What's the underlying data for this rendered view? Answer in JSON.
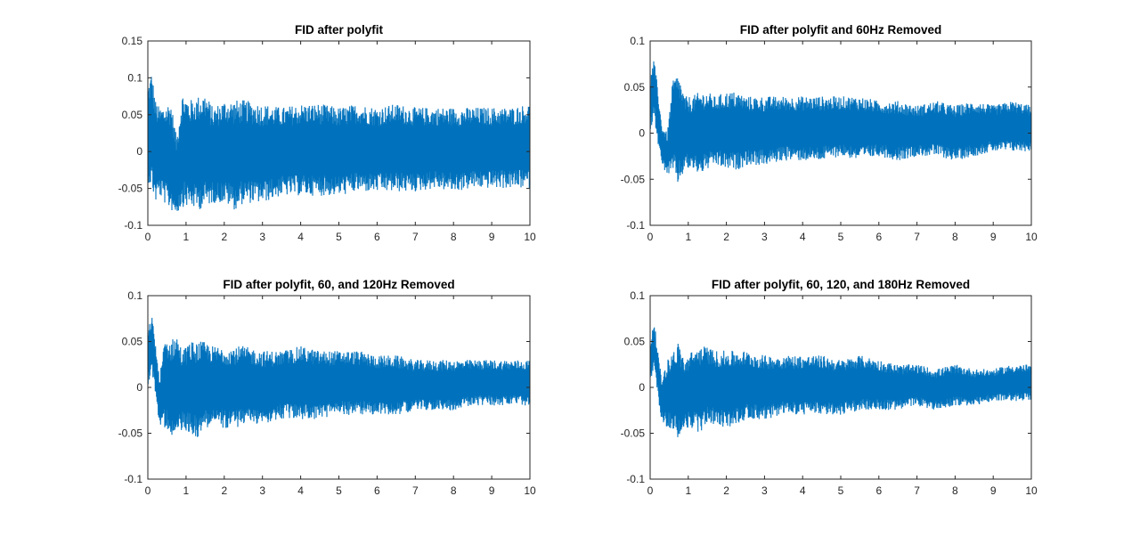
{
  "chart_data": [
    {
      "type": "line",
      "title": "FID after polyfit",
      "xlim": [
        0,
        10
      ],
      "ylim": [
        -0.1,
        0.15
      ],
      "xticks": [
        "0",
        "1",
        "2",
        "3",
        "4",
        "5",
        "6",
        "7",
        "8",
        "9",
        "10"
      ],
      "yticks": [
        "-0.1",
        "-0.05",
        "0",
        "0.05",
        "0.1",
        "0.15"
      ],
      "grid": false,
      "series": [
        {
          "color": "#0072bd",
          "x": [
            0,
            0.1,
            0.2,
            0.3,
            0.5,
            0.6,
            0.75,
            0.9,
            1.1,
            1.3,
            1.5,
            1.7,
            2.0,
            2.3,
            2.5,
            3.0,
            3.5,
            4.0,
            4.5,
            5.0,
            5.5,
            6.0,
            6.5,
            7.0,
            7.5,
            8.0,
            8.5,
            9.0,
            9.5,
            10.0
          ],
          "ymax": [
            0.09,
            0.11,
            0.07,
            0.06,
            0.065,
            0.07,
            0.02,
            0.08,
            0.07,
            0.075,
            0.08,
            0.06,
            0.07,
            0.07,
            0.07,
            0.065,
            0.06,
            0.065,
            0.065,
            0.06,
            0.065,
            0.06,
            0.065,
            0.06,
            0.06,
            0.06,
            0.06,
            0.06,
            0.06,
            0.065
          ],
          "ymin": [
            -0.04,
            -0.05,
            -0.07,
            -0.06,
            -0.075,
            -0.08,
            -0.085,
            -0.075,
            -0.075,
            -0.08,
            -0.075,
            -0.07,
            -0.07,
            -0.08,
            -0.07,
            -0.07,
            -0.06,
            -0.06,
            -0.06,
            -0.06,
            -0.055,
            -0.055,
            -0.055,
            -0.055,
            -0.05,
            -0.055,
            -0.05,
            -0.05,
            -0.05,
            -0.05
          ]
        }
      ]
    },
    {
      "type": "line",
      "title": "FID after polyfit and 60Hz Removed",
      "xlim": [
        0,
        10
      ],
      "ylim": [
        -0.1,
        0.1
      ],
      "xticks": [
        "0",
        "1",
        "2",
        "3",
        "4",
        "5",
        "6",
        "7",
        "8",
        "9",
        "10"
      ],
      "yticks": [
        "-0.1",
        "-0.05",
        "0",
        "0.05",
        "0.1"
      ],
      "grid": false,
      "series": [
        {
          "color": "#0072bd",
          "x": [
            0,
            0.1,
            0.2,
            0.3,
            0.45,
            0.6,
            0.75,
            0.9,
            1.1,
            1.3,
            1.5,
            1.7,
            2.0,
            2.3,
            2.5,
            3.0,
            3.5,
            4.0,
            4.5,
            5.0,
            5.5,
            6.0,
            6.5,
            7.0,
            7.5,
            8.0,
            8.5,
            9.0,
            9.5,
            10.0
          ],
          "ymax": [
            0.06,
            0.08,
            0.05,
            0.01,
            0.0,
            0.06,
            0.065,
            0.04,
            0.04,
            0.045,
            0.045,
            0.04,
            0.045,
            0.045,
            0.04,
            0.04,
            0.04,
            0.04,
            0.04,
            0.04,
            0.04,
            0.035,
            0.035,
            0.03,
            0.035,
            0.03,
            0.035,
            0.03,
            0.035,
            0.03
          ],
          "ymin": [
            0.0,
            0.02,
            -0.01,
            -0.035,
            -0.045,
            -0.045,
            -0.058,
            -0.04,
            -0.04,
            -0.045,
            -0.04,
            -0.035,
            -0.04,
            -0.04,
            -0.035,
            -0.035,
            -0.03,
            -0.03,
            -0.03,
            -0.025,
            -0.03,
            -0.025,
            -0.03,
            -0.025,
            -0.025,
            -0.03,
            -0.025,
            -0.02,
            -0.02,
            -0.02
          ]
        }
      ]
    },
    {
      "type": "line",
      "title": "FID after polyfit, 60, and 120Hz Removed",
      "xlim": [
        0,
        10
      ],
      "ylim": [
        -0.1,
        0.1
      ],
      "xticks": [
        "0",
        "1",
        "2",
        "3",
        "4",
        "5",
        "6",
        "7",
        "8",
        "9",
        "10"
      ],
      "yticks": [
        "-0.1",
        "-0.05",
        "0",
        "0.05",
        "0.1"
      ],
      "grid": false,
      "series": [
        {
          "color": "#0072bd",
          "x": [
            0,
            0.1,
            0.2,
            0.3,
            0.45,
            0.6,
            0.75,
            0.9,
            1.1,
            1.3,
            1.5,
            1.7,
            2.0,
            2.3,
            2.5,
            3.0,
            3.5,
            4.0,
            4.5,
            5.0,
            5.5,
            6.0,
            6.5,
            7.0,
            7.5,
            8.0,
            8.5,
            9.0,
            9.5,
            10.0
          ],
          "ymax": [
            0.06,
            0.08,
            0.05,
            0.01,
            0.055,
            0.05,
            0.06,
            0.04,
            0.05,
            0.05,
            0.05,
            0.045,
            0.045,
            0.045,
            0.045,
            0.04,
            0.04,
            0.045,
            0.04,
            0.04,
            0.04,
            0.035,
            0.035,
            0.03,
            0.03,
            0.03,
            0.03,
            0.03,
            0.03,
            0.03
          ],
          "ymin": [
            0.0,
            0.02,
            -0.01,
            -0.04,
            -0.045,
            -0.05,
            -0.06,
            -0.045,
            -0.05,
            -0.055,
            -0.045,
            -0.04,
            -0.045,
            -0.045,
            -0.04,
            -0.04,
            -0.035,
            -0.035,
            -0.035,
            -0.03,
            -0.03,
            -0.03,
            -0.03,
            -0.025,
            -0.025,
            -0.025,
            -0.02,
            -0.02,
            -0.02,
            -0.02
          ]
        }
      ]
    },
    {
      "type": "line",
      "title": "FID after polyfit, 60, 120, and 180Hz Removed",
      "xlim": [
        0,
        10
      ],
      "ylim": [
        -0.1,
        0.1
      ],
      "xticks": [
        "0",
        "1",
        "2",
        "3",
        "4",
        "5",
        "6",
        "7",
        "8",
        "9",
        "10"
      ],
      "yticks": [
        "-0.1",
        "-0.05",
        "0",
        "0.05",
        "0.1"
      ],
      "grid": false,
      "series": [
        {
          "color": "#0072bd",
          "x": [
            0,
            0.1,
            0.2,
            0.3,
            0.45,
            0.6,
            0.75,
            0.9,
            1.1,
            1.3,
            1.5,
            1.7,
            2.0,
            2.3,
            2.5,
            3.0,
            3.5,
            4.0,
            4.5,
            5.0,
            5.5,
            6.0,
            6.5,
            7.0,
            7.5,
            8.0,
            8.5,
            9.0,
            9.5,
            10.0
          ],
          "ymax": [
            0.05,
            0.075,
            0.04,
            0.01,
            0.03,
            0.04,
            0.05,
            0.03,
            0.04,
            0.045,
            0.045,
            0.04,
            0.04,
            0.04,
            0.04,
            0.035,
            0.035,
            0.035,
            0.035,
            0.03,
            0.035,
            0.03,
            0.025,
            0.025,
            0.02,
            0.025,
            0.02,
            0.02,
            0.025,
            0.025
          ],
          "ymin": [
            0.0,
            0.02,
            -0.01,
            -0.035,
            -0.045,
            -0.045,
            -0.06,
            -0.045,
            -0.045,
            -0.05,
            -0.04,
            -0.04,
            -0.045,
            -0.04,
            -0.035,
            -0.035,
            -0.03,
            -0.03,
            -0.03,
            -0.03,
            -0.025,
            -0.025,
            -0.025,
            -0.02,
            -0.025,
            -0.02,
            -0.02,
            -0.015,
            -0.015,
            -0.015
          ]
        }
      ]
    }
  ]
}
